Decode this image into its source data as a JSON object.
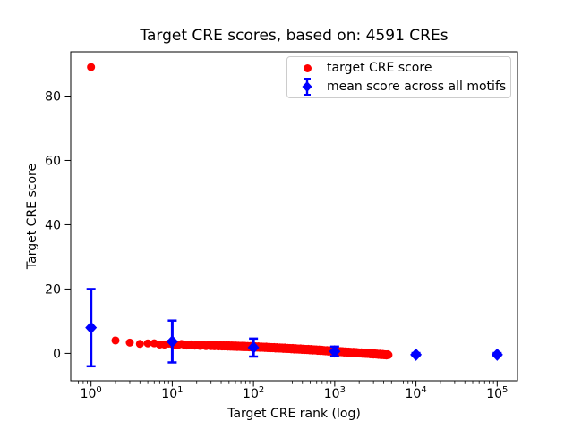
{
  "chart_data": {
    "type": "scatter",
    "title": "Target CRE scores, based on: 4591 CREs",
    "xlabel": "Target CRE rank (log)",
    "ylabel": "Target CRE score",
    "x_scale": "log",
    "x_tick_exponents": [
      0,
      1,
      2,
      3,
      4,
      5
    ],
    "y_ticks": [
      0,
      20,
      40,
      60,
      80
    ],
    "xlim_log10": [
      -0.25,
      5.25
    ],
    "ylim": [
      -8.5,
      93.75
    ],
    "n_cres": 4591,
    "series": [
      {
        "name": "target CRE score",
        "marker": "circle",
        "color": "#ff0000",
        "max_rank": 4591,
        "anchor_ranks": [
          1,
          2,
          3,
          4,
          5,
          7,
          10,
          20,
          50,
          100,
          200,
          500,
          1000,
          2000,
          3000,
          4591
        ],
        "anchor_scores": [
          89,
          3.8,
          3.4,
          3.15,
          3.0,
          2.9,
          2.8,
          2.55,
          2.3,
          2.05,
          1.7,
          1.15,
          0.65,
          0.15,
          -0.15,
          -0.5
        ]
      },
      {
        "name": "mean score across all motifs",
        "marker": "diamond",
        "color": "#0000ff",
        "x": [
          1,
          10,
          100,
          1000,
          10000,
          100000
        ],
        "mean": [
          8.0,
          3.7,
          1.8,
          0.6,
          -0.4,
          -0.4
        ],
        "std": [
          12.0,
          6.5,
          2.8,
          1.5,
          0.5,
          0.5
        ]
      }
    ],
    "legend": {
      "position": "upper right",
      "items": [
        {
          "label": "target CRE score"
        },
        {
          "label": "mean score across all motifs"
        }
      ]
    }
  }
}
